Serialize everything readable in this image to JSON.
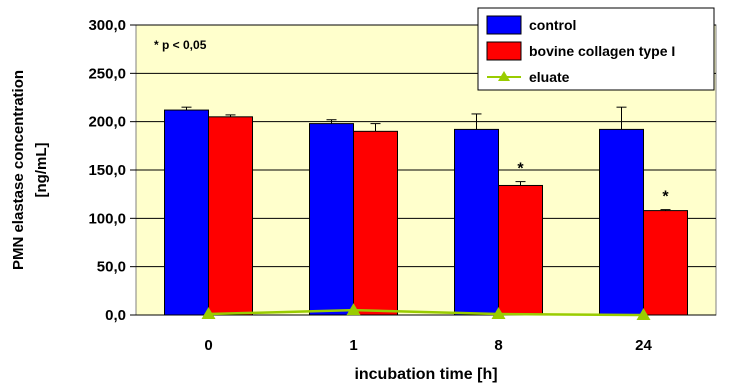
{
  "chart_data": {
    "type": "bar",
    "xlabel": "incubation time [h]",
    "ylabel": "PMN elastase concentration",
    "ylabel_unit": "[ng/mL]",
    "ylim": [
      0,
      300
    ],
    "yticks": [
      "0,0",
      "50,0",
      "100,0",
      "150,0",
      "200,0",
      "250,0",
      "300,0"
    ],
    "ytick_values": [
      0,
      50,
      100,
      150,
      200,
      250,
      300
    ],
    "categories": [
      "0",
      "1",
      "8",
      "24"
    ],
    "grid": "horizontal",
    "legend_position": "top-right",
    "annotation": "* p < 0,05",
    "series": [
      {
        "name": "control",
        "kind": "bar",
        "color": "#0000ff",
        "values": [
          212,
          198,
          192,
          192
        ],
        "errors": [
          3,
          4,
          16,
          23
        ],
        "marks": [
          "",
          "",
          "",
          ""
        ]
      },
      {
        "name": "bovine collagen type I",
        "kind": "bar",
        "color": "#ff0000",
        "values": [
          205,
          190,
          134,
          108
        ],
        "errors": [
          2,
          8,
          4,
          1
        ],
        "marks": [
          "",
          "",
          "*",
          "*"
        ]
      },
      {
        "name": "eluate",
        "kind": "line",
        "color": "#99cc00",
        "values": [
          1,
          5,
          1,
          0
        ]
      }
    ]
  }
}
